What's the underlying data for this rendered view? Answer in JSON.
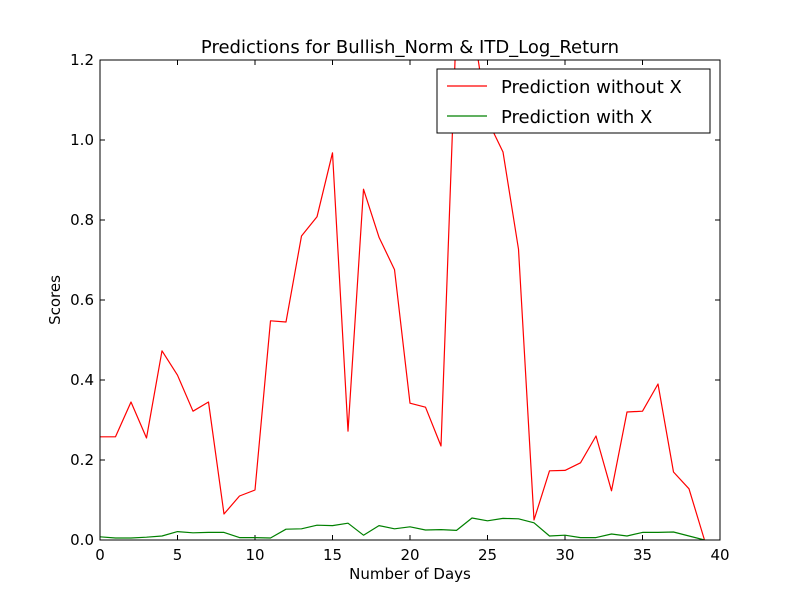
{
  "chart_data": {
    "type": "line",
    "title": "Predictions for Bullish_Norm & ITD_Log_Return",
    "xlabel": "Number of Days",
    "ylabel": "Scores",
    "xlim": [
      0,
      40
    ],
    "ylim": [
      0.0,
      1.2
    ],
    "xticks": [
      0,
      5,
      10,
      15,
      20,
      25,
      30,
      35,
      40
    ],
    "xtick_labels": [
      "0",
      "5",
      "10",
      "15",
      "20",
      "25",
      "30",
      "35",
      "40"
    ],
    "yticks": [
      0.0,
      0.2,
      0.4,
      0.6,
      0.8,
      1.0,
      1.2
    ],
    "ytick_labels": [
      "0.0",
      "0.2",
      "0.4",
      "0.6",
      "0.8",
      "1.0",
      "1.2"
    ],
    "grid": false,
    "legend_position": "top-right",
    "x": [
      0,
      1,
      2,
      3,
      4,
      5,
      6,
      7,
      8,
      9,
      10,
      11,
      12,
      13,
      14,
      15,
      16,
      17,
      18,
      19,
      20,
      21,
      22,
      23,
      24,
      25,
      26,
      27,
      28,
      29,
      30,
      31,
      32,
      33,
      34,
      35,
      36,
      37,
      38,
      39
    ],
    "series": [
      {
        "name": "Prediction without X",
        "color": "#ff0000",
        "values": [
          0.258,
          0.258,
          0.345,
          0.255,
          0.473,
          0.412,
          0.322,
          0.345,
          0.065,
          0.11,
          0.125,
          0.548,
          0.545,
          0.76,
          0.808,
          0.968,
          0.272,
          0.877,
          0.757,
          0.676,
          0.342,
          0.332,
          0.235,
          1.3,
          1.3,
          1.05,
          0.97,
          0.727,
          0.05,
          0.173,
          0.174,
          0.193,
          0.26,
          0.123,
          0.32,
          0.322,
          0.39,
          0.17,
          0.128,
          0.0
        ]
      },
      {
        "name": "Prediction with X",
        "color": "#008000",
        "values": [
          0.008,
          0.005,
          0.005,
          0.007,
          0.01,
          0.021,
          0.018,
          0.019,
          0.019,
          0.006,
          0.006,
          0.005,
          0.027,
          0.028,
          0.037,
          0.036,
          0.042,
          0.012,
          0.036,
          0.028,
          0.033,
          0.025,
          0.026,
          0.024,
          0.055,
          0.048,
          0.054,
          0.053,
          0.043,
          0.01,
          0.012,
          0.006,
          0.006,
          0.015,
          0.01,
          0.019,
          0.019,
          0.02,
          0.01,
          0.0
        ]
      }
    ]
  }
}
